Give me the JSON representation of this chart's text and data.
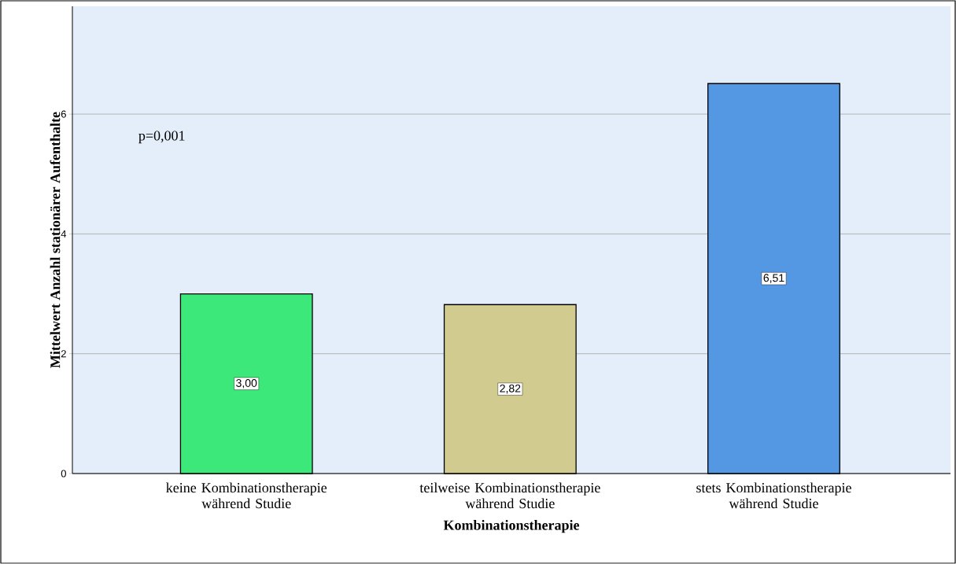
{
  "chart_data": {
    "type": "bar",
    "xlabel": "Kombinationstherapie",
    "ylabel": "Mittelwert Anzahl stationärer Aufenthalte",
    "categories": [
      "keine Kombinationstherapie während Studie",
      "teilweise Kombinationstherapie während Studie",
      "stets Kombinationstherapie während Studie"
    ],
    "values": [
      3.0,
      2.82,
      6.51
    ],
    "colors": [
      "#3de87a",
      "#d2cb8f",
      "#5497e3"
    ],
    "value_labels": [
      "3,00",
      "2,82",
      "6,51"
    ],
    "ylim": [
      0,
      7.8
    ],
    "yticks": [
      0,
      2,
      4,
      6
    ],
    "grid": "y",
    "annotations": [
      "p=0,001"
    ]
  }
}
